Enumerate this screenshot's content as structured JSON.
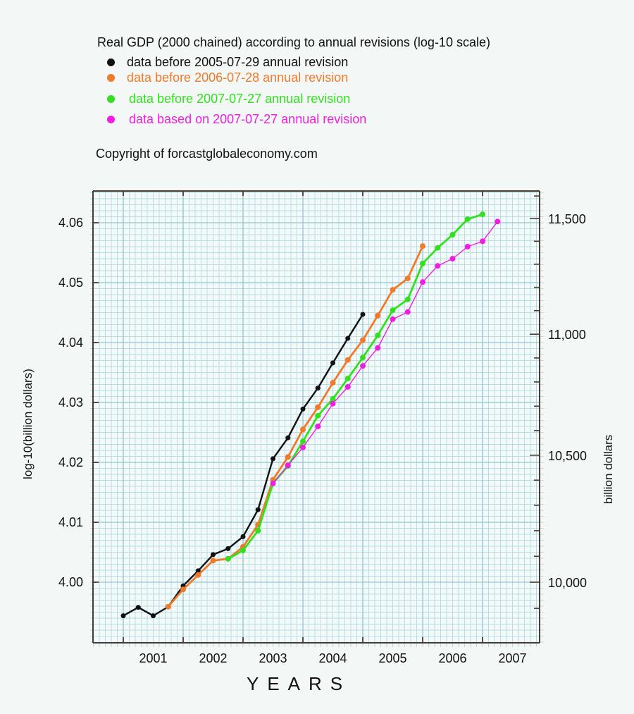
{
  "chart_data": {
    "type": "line",
    "title": "Real GDP (2000 chained) according to annual revisions  (log-10 scale)",
    "copyright": "Copyright of forcastglobaleconomy.com",
    "xlabel": "YEARS",
    "ylabel": "log-10(billion dollars)",
    "ylabel_right": "billion dollars",
    "xlim": [
      2000.5,
      2008.0
    ],
    "ylim": [
      3.9897,
      4.0634
    ],
    "x_tick_labels": [
      "2001",
      "2002",
      "2003",
      "2004",
      "2005",
      "2006",
      "2007"
    ],
    "x_tick_positions": [
      2001.5,
      2002.5,
      2003.5,
      2004.5,
      2005.5,
      2006.5,
      2007.5
    ],
    "y_ticks": [
      4.0,
      4.01,
      4.02,
      4.03,
      4.04,
      4.05,
      4.06
    ],
    "y_tick_labels": [
      "4.00",
      "4.01",
      "4.02",
      "4.03",
      "4.04",
      "4.05",
      "4.06"
    ],
    "y_right_ticks": [
      9900,
      10000,
      10100,
      10200,
      10300,
      10400,
      10500,
      10600,
      10700,
      10800,
      10900,
      11000,
      11100,
      11200,
      11300,
      11400,
      11500,
      11600
    ],
    "y_right_labels": [
      {
        "value": 10000,
        "label": "10,000"
      },
      {
        "value": 10500,
        "label": "10,500"
      },
      {
        "value": 11000,
        "label": "11,000"
      },
      {
        "value": 11500,
        "label": "11,500"
      }
    ],
    "grid": true,
    "legend_position": "top-left",
    "series": [
      {
        "name": "data before 2005-07-29 annual revision",
        "color": "#111111",
        "x": [
          2001.0,
          2001.25,
          2001.5,
          2001.75,
          2002.0,
          2002.25,
          2002.5,
          2002.75,
          2003.0,
          2003.25,
          2003.5,
          2003.75,
          2004.0,
          2004.25,
          2004.5,
          2004.75,
          2005.0
        ],
        "values": [
          3.9944,
          3.9958,
          3.9944,
          3.9959,
          3.9994,
          4.0019,
          4.0046,
          4.0056,
          4.0076,
          4.0121,
          4.0206,
          4.0241,
          4.0289,
          4.0324,
          4.0366,
          4.0407,
          4.0447
        ]
      },
      {
        "name": "data before 2006-07-28 annual revision",
        "color": "#f07a2a",
        "x": [
          2001.75,
          2002.0,
          2002.25,
          2002.5,
          2002.75,
          2003.0,
          2003.25,
          2003.5,
          2003.75,
          2004.0,
          2004.25,
          2004.5,
          2004.75,
          2005.0,
          2005.25,
          2005.5,
          2005.75,
          2006.0
        ],
        "values": [
          3.9959,
          3.9988,
          4.0012,
          4.0036,
          4.0039,
          4.0059,
          4.0096,
          4.0171,
          4.0209,
          4.0255,
          4.0292,
          4.0333,
          4.0371,
          4.0404,
          4.0445,
          4.0488,
          4.0507,
          4.0561
        ]
      },
      {
        "name": "data before 2007-07-27 annual revision",
        "color": "#33e01f",
        "x": [
          2002.75,
          2003.0,
          2003.25,
          2003.5,
          2003.75,
          2004.0,
          2004.25,
          2004.5,
          2004.75,
          2005.0,
          2005.25,
          2005.5,
          2005.75,
          2006.0,
          2006.25,
          2006.5,
          2006.75,
          2007.0
        ],
        "values": [
          4.0039,
          4.0053,
          4.0086,
          4.0165,
          4.0194,
          4.0235,
          4.0278,
          4.0306,
          4.034,
          4.0375,
          4.0412,
          4.0454,
          4.0472,
          4.0532,
          4.0558,
          4.058,
          4.0606,
          4.0614
        ]
      },
      {
        "name": "data based on 2007-07-27 annual revision",
        "color": "#f01ee0",
        "x": [
          2003.5,
          2003.75,
          2004.0,
          2004.25,
          2004.5,
          2004.75,
          2005.0,
          2005.25,
          2005.5,
          2005.75,
          2006.0,
          2006.25,
          2006.5,
          2006.75,
          2007.0,
          2007.25
        ],
        "values": [
          4.0165,
          4.0195,
          4.0225,
          4.026,
          4.0298,
          4.0326,
          4.0361,
          4.0391,
          4.0439,
          4.0451,
          4.0501,
          4.0528,
          4.054,
          4.056,
          4.0569,
          4.0602
        ]
      }
    ]
  },
  "colors": {
    "background": "#f3f7f6",
    "grid_minor": "#b9dde3",
    "grid_major": "#8fc6cf",
    "axis": "#4a3a36"
  }
}
